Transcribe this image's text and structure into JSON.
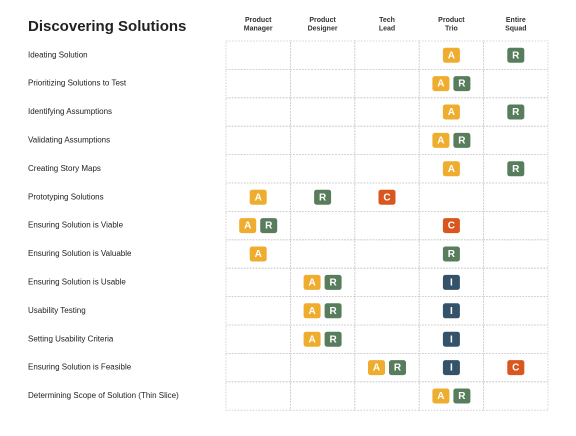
{
  "title": "Discovering Solutions",
  "columns": [
    [
      "Product",
      "Manager"
    ],
    [
      "Product",
      "Designer"
    ],
    [
      "Tech",
      "Lead"
    ],
    [
      "Product",
      "Trio"
    ],
    [
      "Entire",
      "Squad"
    ]
  ],
  "badge_colors": {
    "A": "#efad2f",
    "R": "#587d5c",
    "C": "#d9561f",
    "I": "#34536a"
  },
  "rows": [
    {
      "label": "Ideating Solution",
      "cells": [
        [],
        [],
        [],
        [
          "A"
        ],
        [
          "R"
        ]
      ]
    },
    {
      "label": "Prioritizing Solutions to Test",
      "cells": [
        [],
        [],
        [],
        [
          "A",
          "R"
        ],
        []
      ]
    },
    {
      "label": "Identifying Assumptions",
      "cells": [
        [],
        [],
        [],
        [
          "A"
        ],
        [
          "R"
        ]
      ]
    },
    {
      "label": "Validating Assumptions",
      "cells": [
        [],
        [],
        [],
        [
          "A",
          "R"
        ],
        []
      ]
    },
    {
      "label": "Creating Story Maps",
      "cells": [
        [],
        [],
        [],
        [
          "A"
        ],
        [
          "R"
        ]
      ]
    },
    {
      "label": "Prototyping Solutions",
      "cells": [
        [
          "A"
        ],
        [
          "R"
        ],
        [
          "C"
        ],
        [],
        []
      ]
    },
    {
      "label": "Ensuring Solution is Viable",
      "cells": [
        [
          "A",
          "R"
        ],
        [],
        [],
        [
          "C"
        ],
        []
      ]
    },
    {
      "label": "Ensuring Solution is Valuable",
      "cells": [
        [
          "A"
        ],
        [],
        [],
        [
          "R"
        ],
        []
      ]
    },
    {
      "label": "Ensuring Solution is Usable",
      "cells": [
        [],
        [
          "A",
          "R"
        ],
        [],
        [
          "I"
        ],
        []
      ]
    },
    {
      "label": "Usability Testing",
      "cells": [
        [],
        [
          "A",
          "R"
        ],
        [],
        [
          "I"
        ],
        []
      ]
    },
    {
      "label": "Setting Usability Criteria",
      "cells": [
        [],
        [
          "A",
          "R"
        ],
        [],
        [
          "I"
        ],
        []
      ]
    },
    {
      "label": "Ensuring Solution is Feasible",
      "cells": [
        [],
        [],
        [
          "A",
          "R"
        ],
        [
          "I"
        ],
        [
          "C"
        ]
      ]
    },
    {
      "label": "Determining Scope of Solution (Thin Slice)",
      "cells": [
        [],
        [],
        [],
        [
          "A",
          "R"
        ],
        []
      ]
    }
  ]
}
